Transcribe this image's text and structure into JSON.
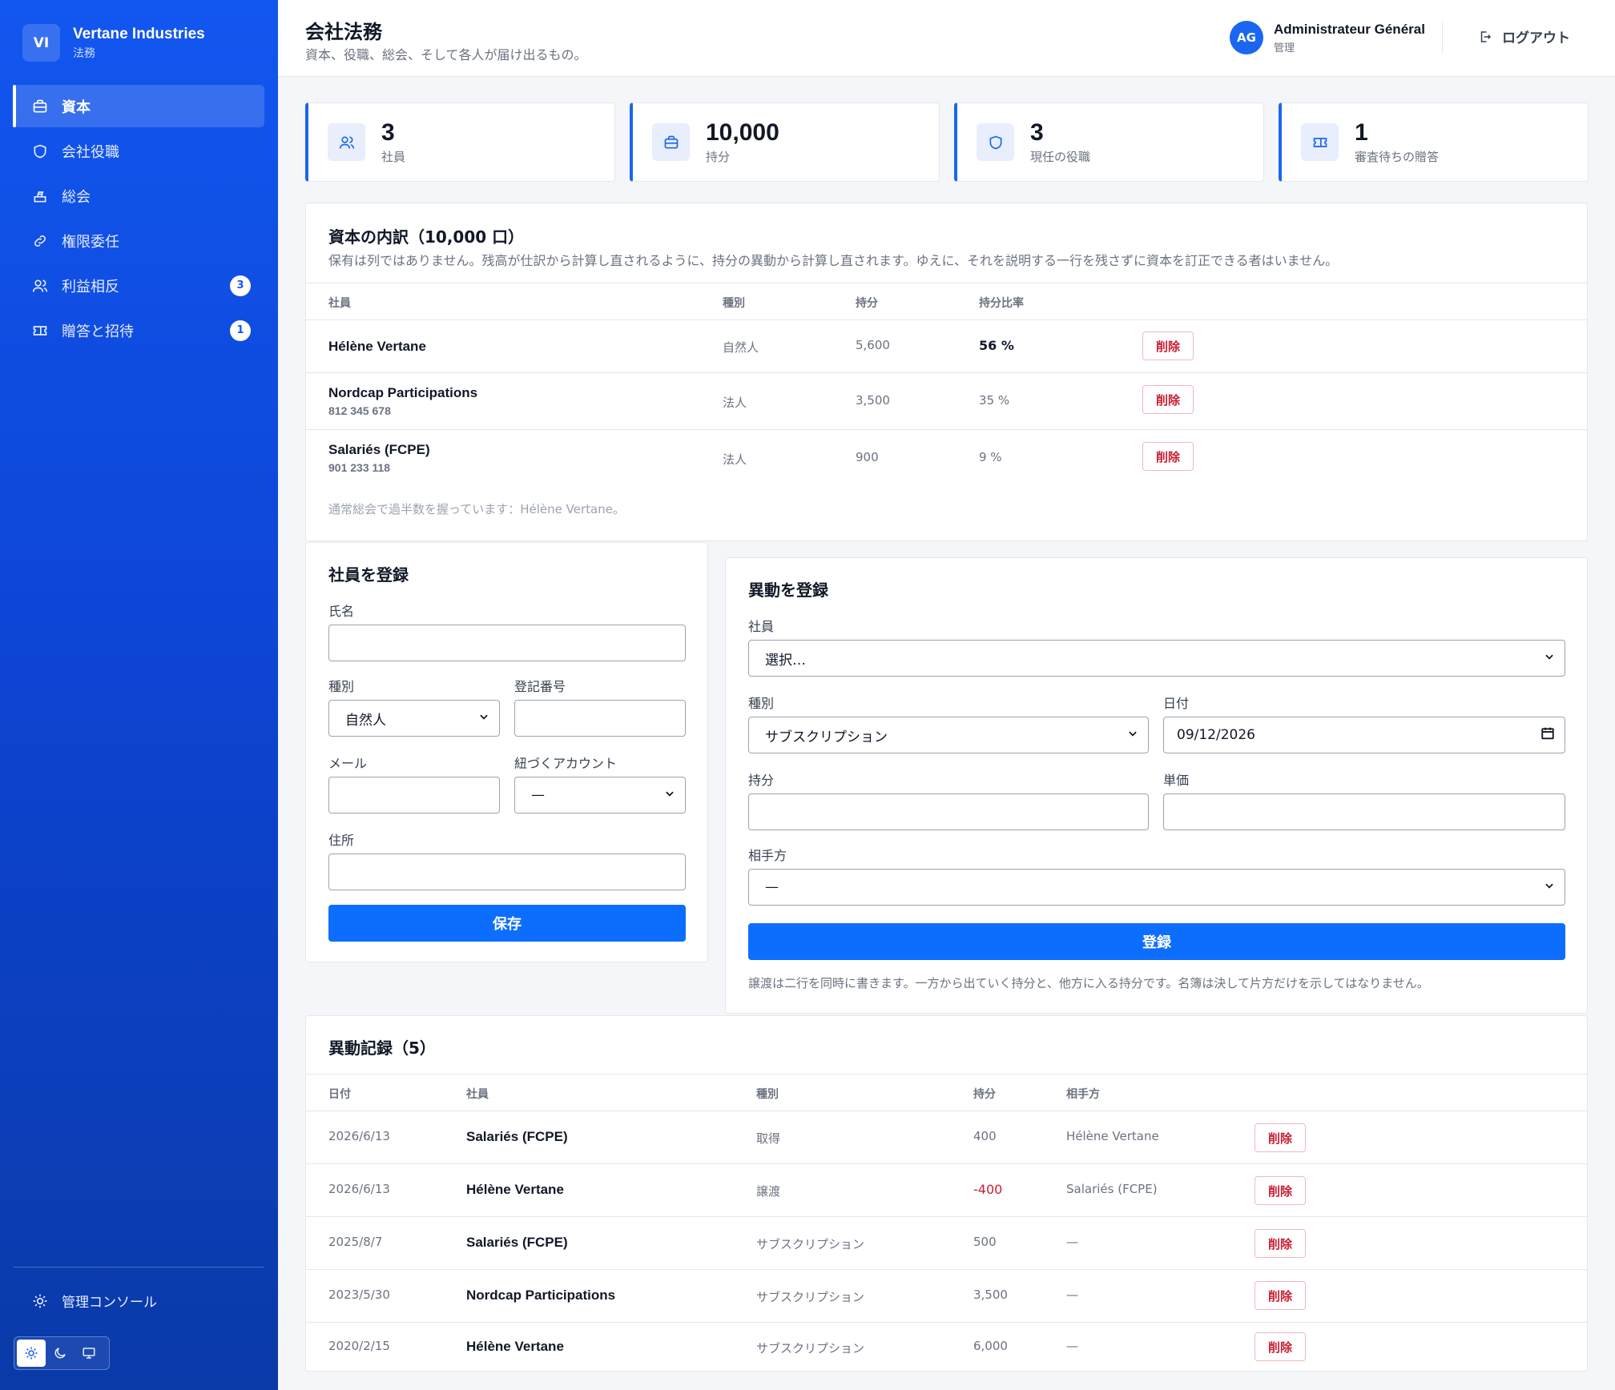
{
  "brand": {
    "initials": "VI",
    "name": "Vertane Industries",
    "subtitle": "法務"
  },
  "sidebar": {
    "items": [
      {
        "label": "資本",
        "active": true
      },
      {
        "label": "会社役職"
      },
      {
        "label": "総会"
      },
      {
        "label": "権限委任"
      },
      {
        "label": "利益相反",
        "badge": "3"
      },
      {
        "label": "贈答と招待",
        "badge": "1"
      }
    ],
    "admin_console": "管理コンソール"
  },
  "header": {
    "title": "会社法務",
    "subtitle": "資本、役職、総会、そして各人が届け出るもの。",
    "user_initials": "AG",
    "user_name": "Administrateur Général",
    "user_role": "管理",
    "logout": "ログアウト"
  },
  "stats": [
    {
      "value": "3",
      "label": "社員"
    },
    {
      "value": "10,000",
      "label": "持分"
    },
    {
      "value": "3",
      "label": "現任の役職"
    },
    {
      "value": "1",
      "label": "審査待ちの贈答"
    }
  ],
  "capital": {
    "title": "資本の内訳（10,000 口）",
    "description": "保有は列ではありません。残高が仕訳から計算し直されるように、持分の異動から計算し直されます。ゆえに、それを説明する一行を残さずに資本を訂正できる者はいません。",
    "columns": [
      "社員",
      "種別",
      "持分",
      "持分比率"
    ],
    "rows": [
      {
        "name": "Hélène Vertane",
        "reg": "",
        "type": "自然人",
        "shares": "5,600",
        "pct": "56 %",
        "del": "削除"
      },
      {
        "name": "Nordcap Participations",
        "reg": "812 345 678",
        "type": "法人",
        "shares": "3,500",
        "pct": "35 %",
        "del": "削除"
      },
      {
        "name": "Salariés (FCPE)",
        "reg": "901 233 118",
        "type": "法人",
        "shares": "900",
        "pct": "9 %",
        "del": "削除"
      }
    ],
    "note": "通常総会で過半数を握っています：Hélène Vertane。"
  },
  "register_member": {
    "title": "社員を登録",
    "name_label": "氏名",
    "type_label": "種別",
    "type_value": "自然人",
    "reg_label": "登記番号",
    "email_label": "メール",
    "account_label": "紐づくアカウント",
    "account_value": "—",
    "address_label": "住所",
    "save": "保存"
  },
  "register_movement": {
    "title": "異動を登録",
    "member_label": "社員",
    "member_value": "選択…",
    "type_label": "種別",
    "type_value": "サブスクリプション",
    "date_label": "日付",
    "date_value": "09/12/2026",
    "shares_label": "持分",
    "price_label": "単価",
    "counterparty_label": "相手方",
    "counterparty_value": "—",
    "submit": "登録",
    "note": "譲渡は二行を同時に書きます。一方から出ていく持分と、他方に入る持分です。名簿は決して片方だけを示してはなりません。"
  },
  "movements": {
    "title": "異動記録（5）",
    "columns": [
      "日付",
      "社員",
      "種別",
      "持分",
      "相手方"
    ],
    "rows": [
      {
        "date": "2026/6/13",
        "member": "Salariés (FCPE)",
        "type": "取得",
        "shares": "400",
        "counterparty": "Hélène Vertane",
        "del": "削除"
      },
      {
        "date": "2026/6/13",
        "member": "Hélène Vertane",
        "type": "譲渡",
        "shares": "-400",
        "counterparty": "Salariés (FCPE)",
        "del": "削除"
      },
      {
        "date": "2025/8/7",
        "member": "Salariés (FCPE)",
        "type": "サブスクリプション",
        "shares": "500",
        "counterparty": "—",
        "del": "削除"
      },
      {
        "date": "2023/5/30",
        "member": "Nordcap Participations",
        "type": "サブスクリプション",
        "shares": "3,500",
        "counterparty": "—",
        "del": "削除"
      },
      {
        "date": "2020/2/15",
        "member": "Hélène Vertane",
        "type": "サブスクリプション",
        "shares": "6,000",
        "counterparty": "—",
        "del": "削除"
      }
    ]
  },
  "colors": {
    "accent": "#0d6efd",
    "sidebar": "#1257f0",
    "danger": "#c81e32"
  }
}
